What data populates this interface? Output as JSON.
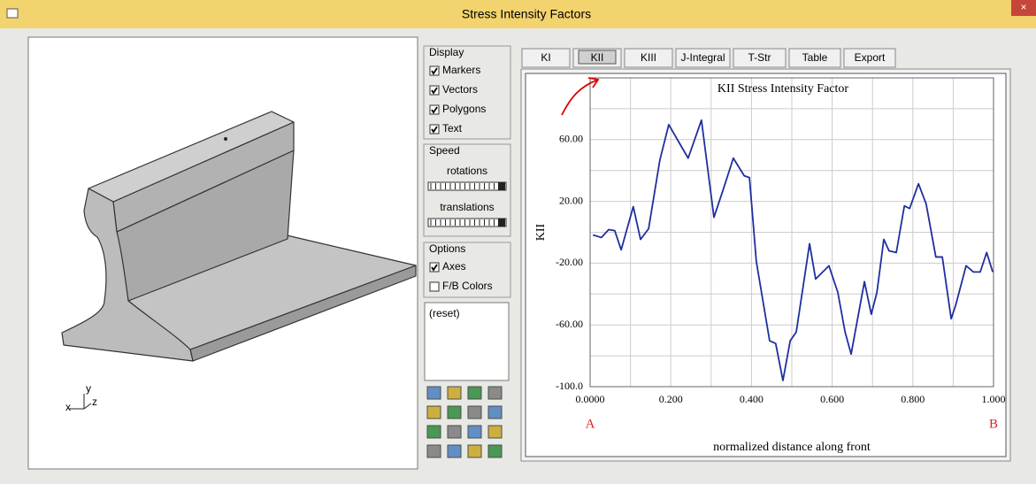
{
  "window": {
    "title": "Stress Intensity Factors"
  },
  "viewport": {
    "axes_labels": [
      "x",
      "y",
      "z"
    ]
  },
  "controls": {
    "display": {
      "title": "Display",
      "items": [
        {
          "label": "Markers",
          "checked": true
        },
        {
          "label": "Vectors",
          "checked": true
        },
        {
          "label": "Polygons",
          "checked": true
        },
        {
          "label": "Text",
          "checked": true
        }
      ]
    },
    "speed": {
      "title": "Speed",
      "sliders": [
        "rotations",
        "translations"
      ]
    },
    "options": {
      "title": "Options",
      "items": [
        {
          "label": "Axes",
          "checked": true
        },
        {
          "label": "F/B Colors",
          "checked": false
        }
      ]
    },
    "list": [
      "(reset)"
    ]
  },
  "tabs": {
    "items": [
      "KI",
      "KII",
      "KIII",
      "J-Integral",
      "T-Str",
      "Table",
      "Export"
    ],
    "selected": 1
  },
  "chart_data": {
    "type": "line",
    "title": "KII Stress Intensity Factor",
    "xlabel": "normalized distance along front",
    "ylabel": "KII",
    "annotations": [
      {
        "text": "A",
        "x": 0
      },
      {
        "text": "B",
        "x": 1
      }
    ],
    "x": [
      0.007,
      0.028,
      0.046,
      0.061,
      0.077,
      0.107,
      0.125,
      0.145,
      0.173,
      0.195,
      0.243,
      0.276,
      0.307,
      0.329,
      0.355,
      0.382,
      0.395,
      0.412,
      0.445,
      0.46,
      0.478,
      0.496,
      0.511,
      0.544,
      0.559,
      0.592,
      0.614,
      0.632,
      0.647,
      0.68,
      0.697,
      0.711,
      0.728,
      0.741,
      0.759,
      0.779,
      0.792,
      0.814,
      0.833,
      0.857,
      0.873,
      0.895,
      0.906,
      0.932,
      0.95,
      0.967,
      0.983,
      0.998
    ],
    "series": [
      {
        "color": "#1f2f9f",
        "values": [
          -1.7,
          -3.4,
          1.7,
          1.1,
          -11.4,
          16.6,
          -4.6,
          2.3,
          46.9,
          69.7,
          48,
          72.6,
          9.7,
          26.9,
          48,
          36.6,
          35.4,
          -18.9,
          -70.3,
          -72,
          -96,
          -70.3,
          -64.6,
          -7.4,
          -30.3,
          -21.7,
          -38.9,
          -64.6,
          -78.9,
          -32,
          -53.1,
          -38.9,
          -4.6,
          -12,
          -13.1,
          17.1,
          15.4,
          31.4,
          18.3,
          -16,
          -16,
          -56,
          -47.4,
          -21.7,
          -25.7,
          -25.7,
          -13.1,
          -25.7
        ]
      }
    ],
    "xlim": [
      0,
      1
    ],
    "ylim": [
      -100,
      100
    ],
    "xticks": [
      {
        "value": 0,
        "label": "0.0000"
      },
      {
        "value": 0.2,
        "label": "0.200"
      },
      {
        "value": 0.4,
        "label": "0.400"
      },
      {
        "value": 0.6,
        "label": "0.600"
      },
      {
        "value": 0.8,
        "label": "0.800"
      },
      {
        "value": 1,
        "label": "1.000"
      }
    ],
    "yticks": [
      {
        "value": 60,
        "label": "60.00"
      },
      {
        "value": 20,
        "label": "20.00"
      },
      {
        "value": -20,
        "label": "-20.00"
      },
      {
        "value": -60,
        "label": "-60.00"
      },
      {
        "value": -100,
        "label": "-100.0"
      }
    ],
    "minor_xticks": [
      0.1,
      0.3,
      0.5,
      0.7,
      0.9
    ],
    "minor_yticks": [
      80,
      40,
      0,
      -40,
      -80
    ],
    "grid": true
  }
}
